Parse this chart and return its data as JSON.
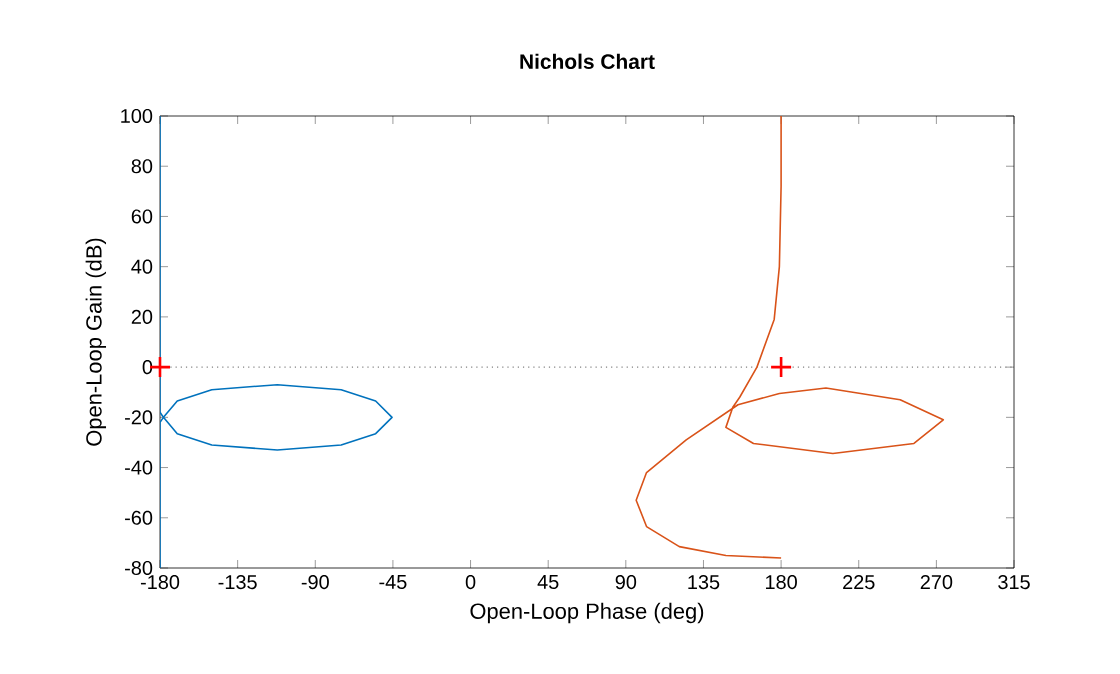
{
  "chart_data": {
    "type": "line",
    "title": "Nichols Chart",
    "xlabel": "Open-Loop Phase (deg)",
    "ylabel": "Open-Loop Gain (dB)",
    "xlim": [
      -180,
      315
    ],
    "ylim": [
      -80,
      100
    ],
    "xticks": [
      -180,
      -135,
      -90,
      -45,
      0,
      45,
      90,
      135,
      180,
      225,
      270,
      315
    ],
    "yticks": [
      -80,
      -60,
      -40,
      -20,
      0,
      20,
      40,
      60,
      80,
      100
    ],
    "grid": false,
    "marker": "none",
    "line_style": "solid",
    "ref_lines": [
      {
        "axis": "y",
        "value": 0,
        "color": "#808080",
        "line_style": "dotted"
      }
    ],
    "series": [
      {
        "color": "#0072bd",
        "x": [
          -180,
          -180,
          -178,
          -170,
          -150,
          -112,
          -75,
          -55,
          -45.5,
          -55,
          -75,
          -112,
          -150,
          -170,
          -178,
          -180,
          -180
        ],
        "values": [
          100,
          -18,
          -20,
          -13.5,
          -9,
          -7,
          -9,
          -13.5,
          -20,
          -26.5,
          -31,
          -33,
          -31,
          -26.5,
          -20,
          -22,
          -80
        ]
      },
      {
        "color": "#d95319",
        "x": [
          180,
          180,
          179,
          176,
          166,
          156,
          152,
          148,
          164,
          210,
          257,
          274,
          249,
          206,
          179,
          155,
          125,
          102,
          96,
          102,
          121,
          148,
          180
        ],
        "values": [
          100,
          72,
          40,
          19,
          0,
          -12,
          -16,
          -24,
          -30.4,
          -34.4,
          -30.4,
          -21,
          -13,
          -8.3,
          -10.5,
          -15,
          -29,
          -42,
          -53,
          -63.5,
          -71.5,
          -75,
          -76
        ]
      },
      {
        "type": "scatter",
        "color": "#ff0000",
        "marker": "cross",
        "x": [
          -180,
          180
        ],
        "values": [
          0,
          0
        ]
      }
    ]
  }
}
